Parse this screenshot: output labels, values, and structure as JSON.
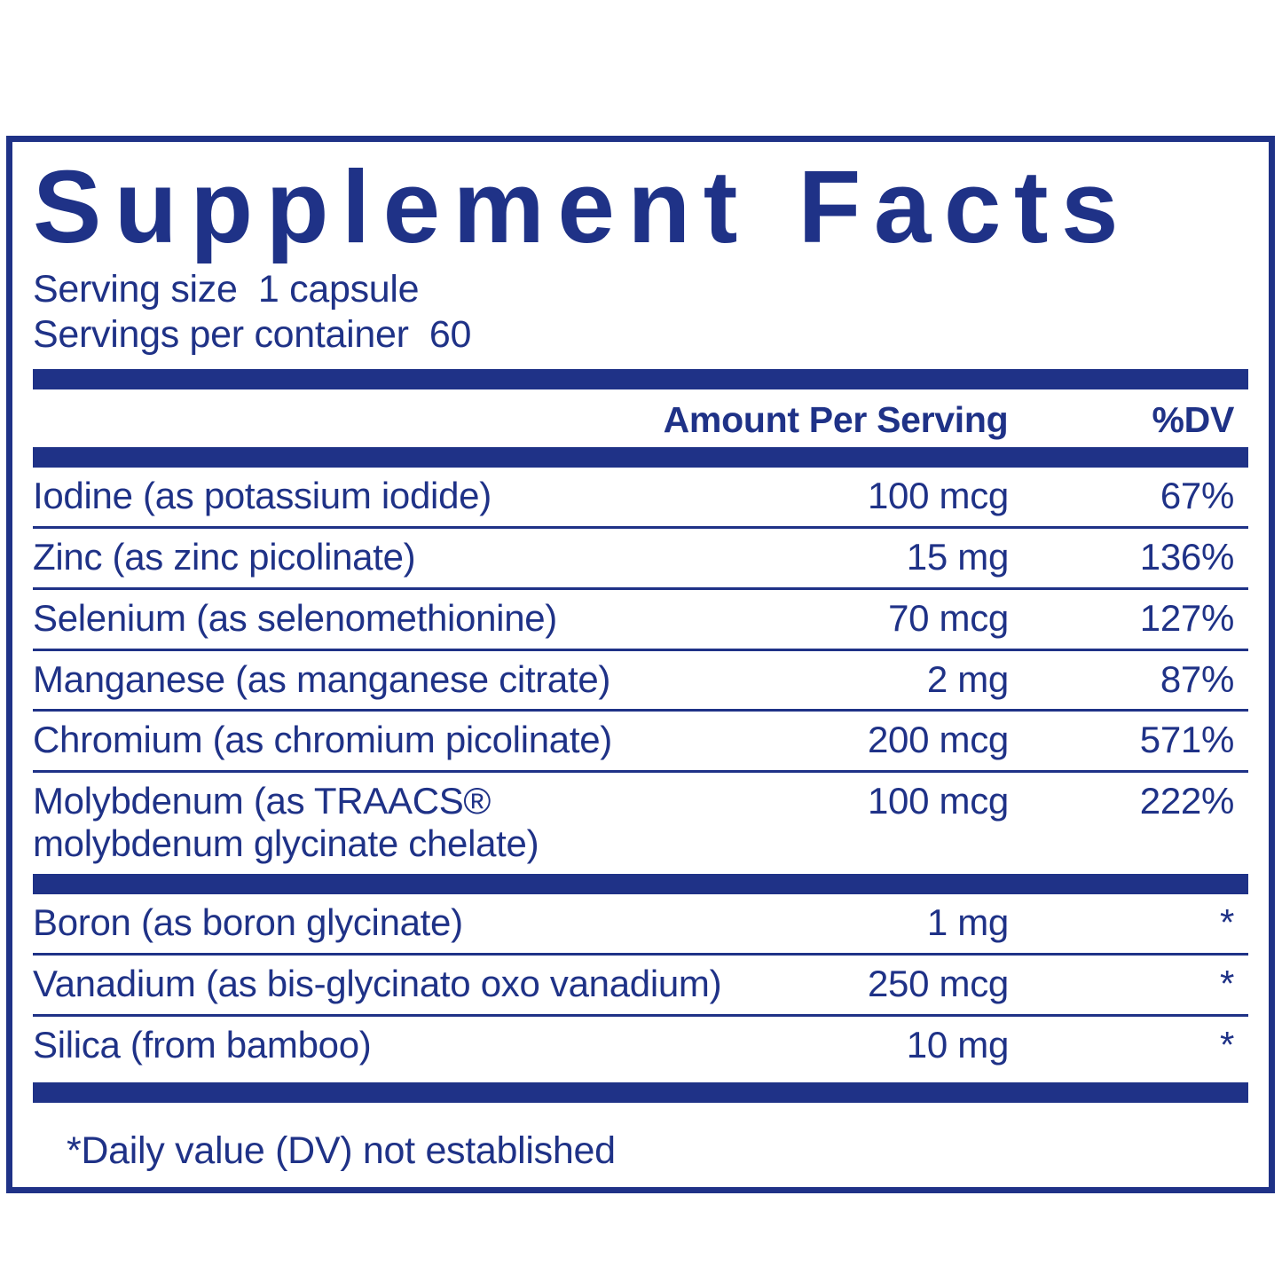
{
  "colors": {
    "navy": "#1f3287",
    "background": "#ffffff"
  },
  "label": {
    "title": "Supplement Facts",
    "serving_size": "Serving size  1 capsule",
    "servings_per_container": "Servings per container  60"
  },
  "table": {
    "amount_header": "Amount Per Serving",
    "dv_header": "%DV",
    "main_rows": [
      {
        "name": "Iodine (as potassium iodide)",
        "amount": "100 mcg",
        "dv": "67%"
      },
      {
        "name": "Zinc (as zinc picolinate)",
        "amount": "15 mg",
        "dv": "136%"
      },
      {
        "name": "Selenium (as selenomethionine)",
        "amount": "70 mcg",
        "dv": "127%"
      },
      {
        "name": "Manganese (as manganese citrate)",
        "amount": "2 mg",
        "dv": "87%"
      },
      {
        "name": "Chromium (as chromium picolinate)",
        "amount": "200 mcg",
        "dv": "571%"
      },
      {
        "name": "Molybdenum (as TRAACS®\nmolybdenum glycinate chelate)",
        "amount": "100 mcg",
        "dv": "222%"
      }
    ],
    "secondary_rows": [
      {
        "name": "Boron (as boron glycinate)",
        "amount": "1 mg",
        "dv": "*"
      },
      {
        "name": "Vanadium (as bis-glycinato oxo vanadium)",
        "amount": "250 mcg",
        "dv": "*"
      },
      {
        "name": "Silica (from bamboo)",
        "amount": "10 mg",
        "dv": "*"
      }
    ],
    "footnote": "*Daily value (DV) not established"
  }
}
